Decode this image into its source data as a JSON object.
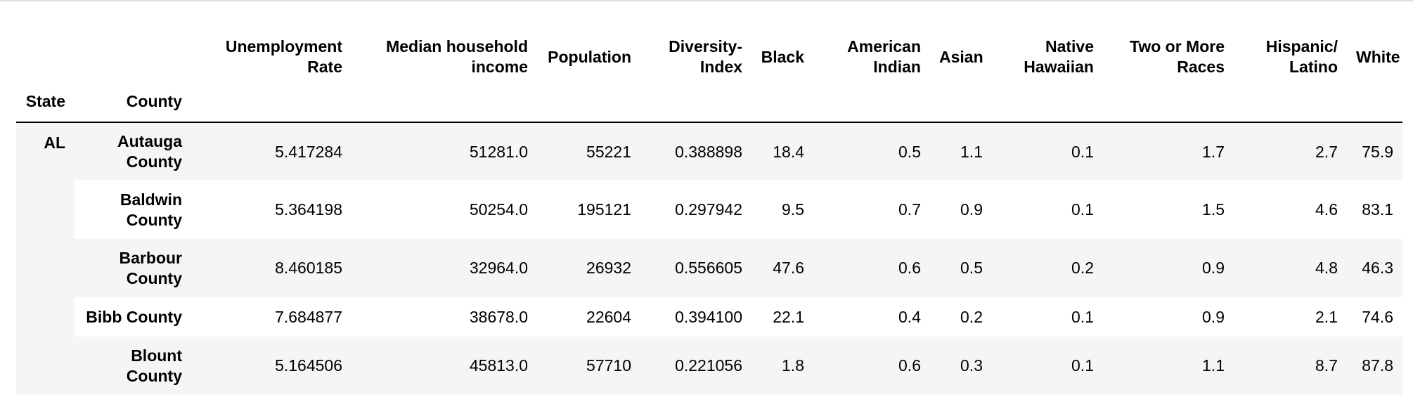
{
  "table": {
    "columns": [
      "Unemployment Rate",
      "Median household income",
      "Population",
      "Diversity-Index",
      "Black",
      "American Indian",
      "Asian",
      "Native Hawaiian",
      "Two or More Races",
      "Hispanic/ Latino",
      "White"
    ],
    "index_names": [
      "State",
      "County"
    ],
    "state": "AL",
    "rows": [
      {
        "county": "Autauga County",
        "values": [
          "5.417284",
          "51281.0",
          "55221",
          "0.388898",
          "18.4",
          "0.5",
          "1.1",
          "0.1",
          "1.7",
          "2.7",
          "75.9"
        ]
      },
      {
        "county": "Baldwin County",
        "values": [
          "5.364198",
          "50254.0",
          "195121",
          "0.297942",
          "9.5",
          "0.7",
          "0.9",
          "0.1",
          "1.5",
          "4.6",
          "83.1"
        ]
      },
      {
        "county": "Barbour County",
        "values": [
          "8.460185",
          "32964.0",
          "26932",
          "0.556605",
          "47.6",
          "0.6",
          "0.5",
          "0.2",
          "0.9",
          "4.8",
          "46.3"
        ]
      },
      {
        "county": "Bibb County",
        "values": [
          "7.684877",
          "38678.0",
          "22604",
          "0.394100",
          "22.1",
          "0.4",
          "0.2",
          "0.1",
          "0.9",
          "2.1",
          "74.6"
        ]
      },
      {
        "county": "Blount County",
        "values": [
          "5.164506",
          "45813.0",
          "57710",
          "0.221056",
          "1.8",
          "0.6",
          "0.3",
          "0.1",
          "1.1",
          "8.7",
          "87.8"
        ]
      }
    ]
  }
}
